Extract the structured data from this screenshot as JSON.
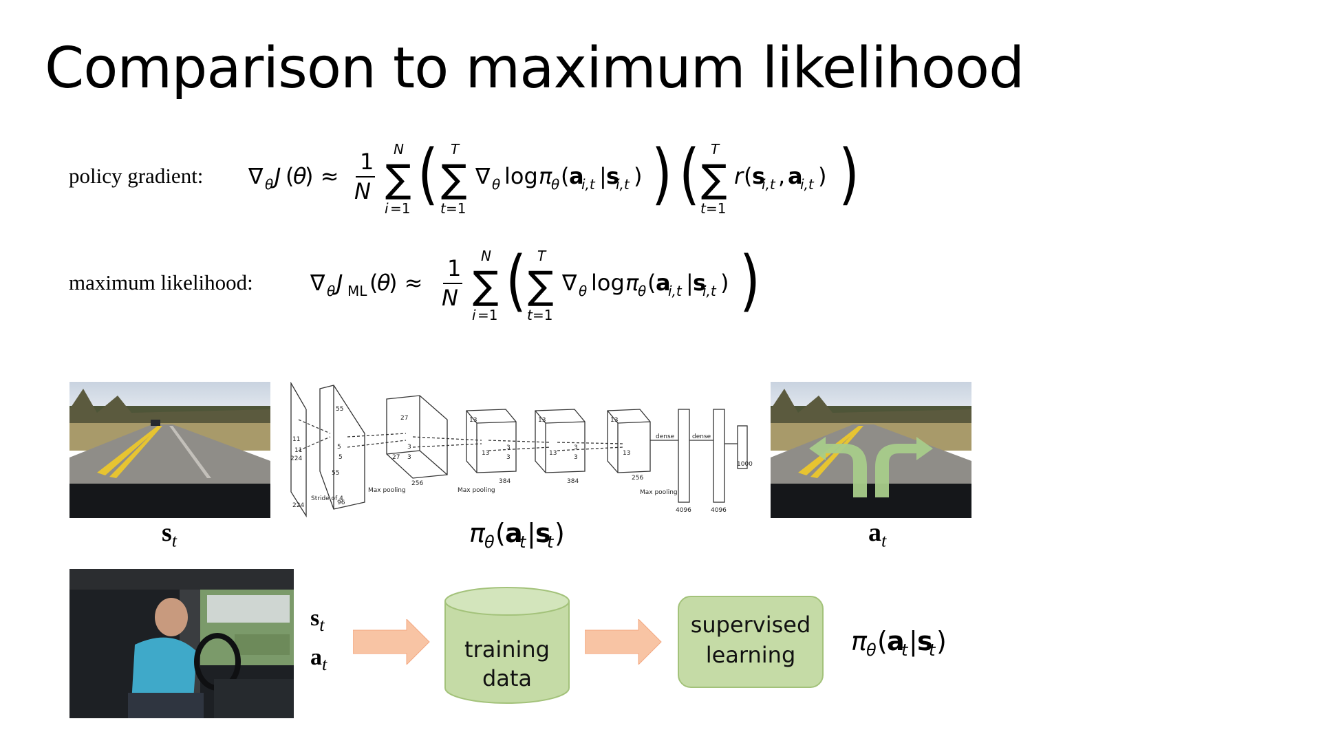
{
  "slide": {
    "title": "Comparison to maximum likelihood"
  },
  "equations": {
    "pg_label": "policy gradient:",
    "ml_label": "maximum likelihood:"
  },
  "captions": {
    "state": "s",
    "state_sub": "t",
    "action": "a",
    "action_sub": "t",
    "policy": "π"
  },
  "network": {
    "labels": [
      "55",
      "11",
      "11",
      "224",
      "224",
      "Stride of 4",
      "96",
      "55",
      "5",
      "5",
      "Max pooling",
      "27",
      "27",
      "256",
      "3",
      "3",
      "Max pooling",
      "13",
      "13",
      "384",
      "3",
      "3",
      "13",
      "13",
      "384",
      "3",
      "3",
      "13",
      "13",
      "256",
      "Max pooling",
      "dense",
      "dense",
      "4096",
      "4096",
      "1000"
    ]
  },
  "pipeline": {
    "state_label": "s",
    "action_label": "a",
    "sub": "t",
    "training_data_line1": "training",
    "training_data_line2": "data",
    "supervised_line1": "supervised",
    "supervised_line2": "learning",
    "arrow_color": "#f8c4a4",
    "node_fill": "#c5dba6",
    "node_stroke": "#a3c27a"
  }
}
